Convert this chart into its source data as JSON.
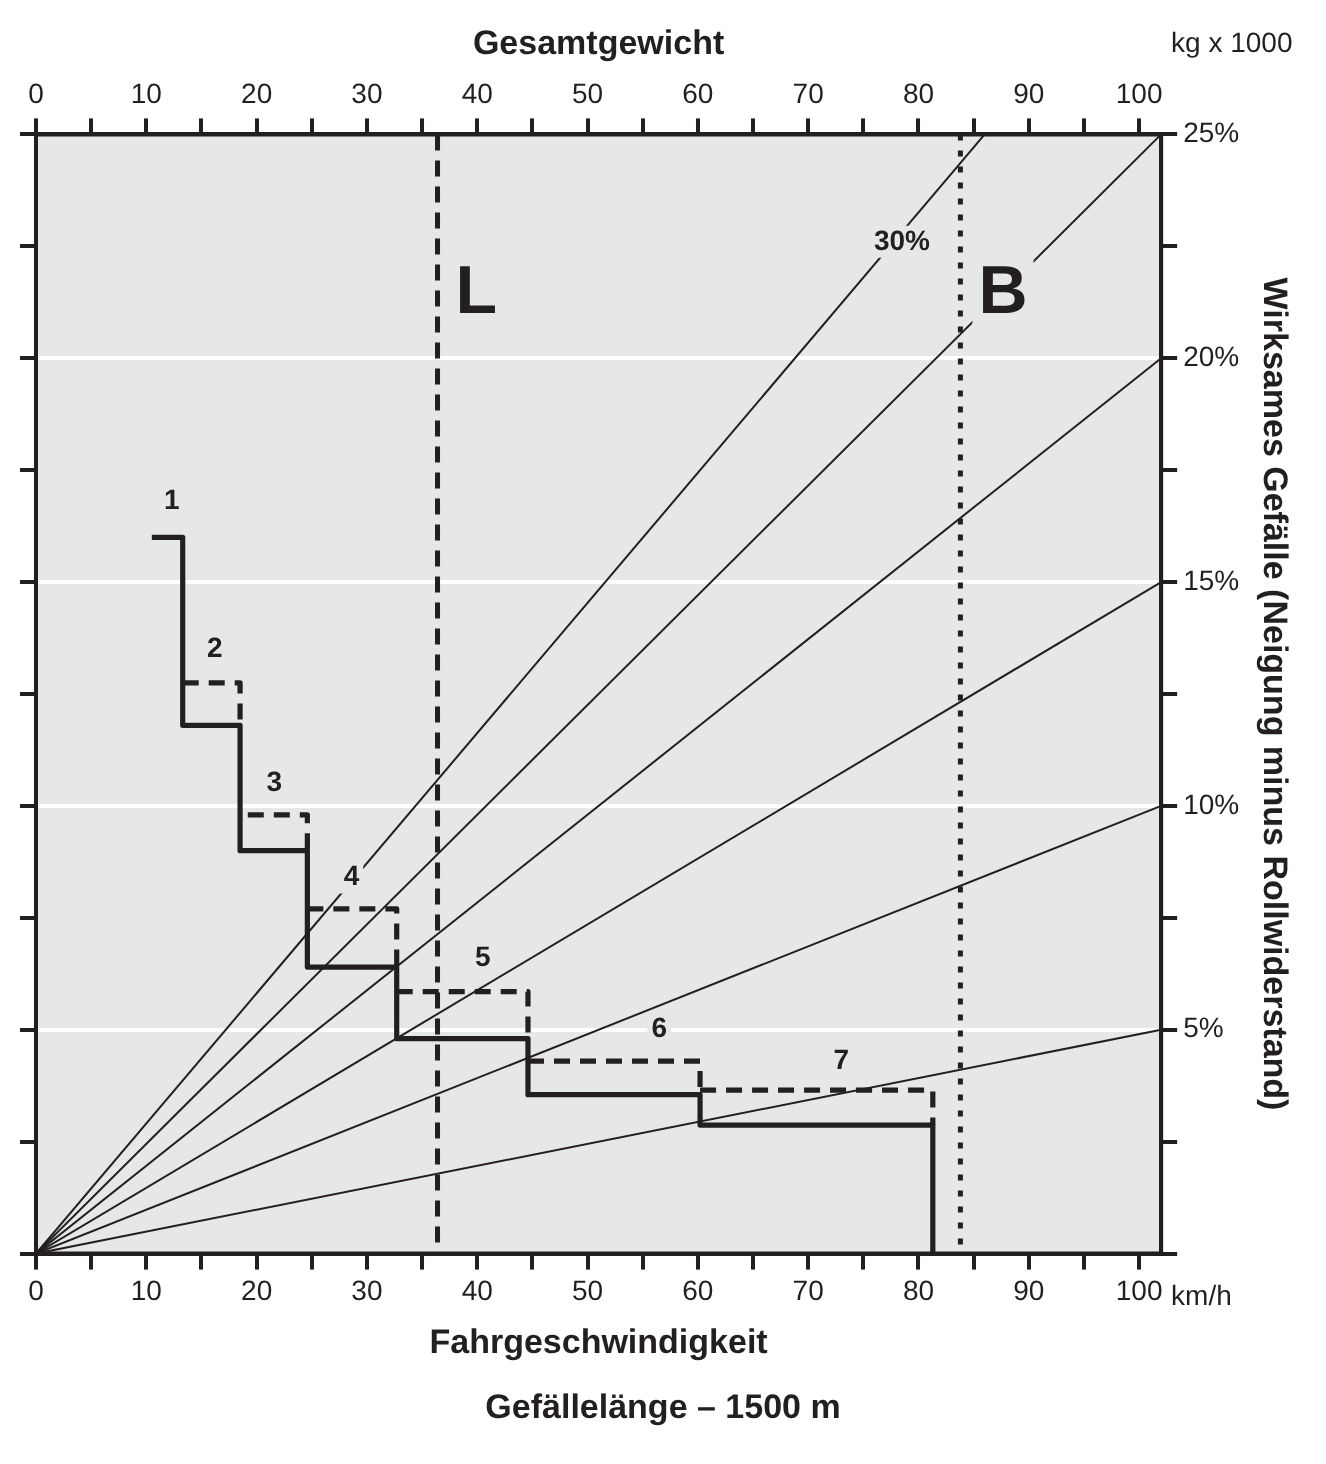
{
  "chart_data": {
    "type": "line",
    "xlabel": "Fahrgeschwindigkeit",
    "x2label": "Gesamtgewicht",
    "ylabel": "Wirksames Gefälle (Neigung minus Rollwiderstand)",
    "xlim": [
      0,
      102
    ],
    "xticks": [
      0,
      {
        "value": 5,
        "label": null
      },
      10,
      {
        "value": 15,
        "label": null
      },
      20,
      {
        "value": 25,
        "label": null
      },
      30,
      {
        "value": 35,
        "label": null
      },
      40,
      {
        "value": 45,
        "label": null
      },
      50,
      {
        "value": 55,
        "label": null
      },
      60,
      {
        "value": 65,
        "label": null
      },
      70,
      {
        "value": 75,
        "label": null
      },
      80,
      {
        "value": 85,
        "label": null
      },
      90,
      {
        "value": 95,
        "label": null
      },
      100
    ],
    "x2lim": [
      0,
      102
    ],
    "x2ticks": [
      0,
      {
        "value": 5,
        "label": null
      },
      10,
      {
        "value": 15,
        "label": null
      },
      20,
      {
        "value": 25,
        "label": null
      },
      30,
      {
        "value": 35,
        "label": null
      },
      40,
      {
        "value": 45,
        "label": null
      },
      50,
      {
        "value": 55,
        "label": null
      },
      60,
      {
        "value": 65,
        "label": null
      },
      70,
      {
        "value": 75,
        "label": null
      },
      80,
      {
        "value": 85,
        "label": null
      },
      90,
      {
        "value": 95,
        "label": null
      },
      100
    ],
    "ylim": [
      0,
      25
    ],
    "yticks": [
      {
        "value": 0,
        "label": null
      },
      {
        "value": 2.5,
        "label": null
      },
      {
        "value": 5,
        "label": "5%"
      },
      {
        "value": 7.5,
        "label": null
      },
      {
        "value": 10,
        "label": "10%"
      },
      {
        "value": 12.5,
        "label": null
      },
      {
        "value": 15,
        "label": "15%"
      },
      {
        "value": 17.5,
        "label": null
      },
      {
        "value": 20,
        "label": "20%"
      },
      {
        "value": 22.5,
        "label": null
      },
      {
        "value": 25,
        "label": "25%"
      }
    ],
    "grid": "y",
    "marker": "none",
    "series": [
      {
        "color": "#231f20",
        "x": [
          0,
          102
        ],
        "values": [
          0,
          5
        ]
      },
      {
        "color": "#231f20",
        "x": [
          0,
          102
        ],
        "values": [
          0,
          10
        ]
      },
      {
        "color": "#231f20",
        "x": [
          0,
          102
        ],
        "values": [
          0,
          15
        ]
      },
      {
        "color": "#231f20",
        "x": [
          0,
          102
        ],
        "values": [
          0,
          20
        ]
      },
      {
        "color": "#231f20",
        "x": [
          0,
          102
        ],
        "values": [
          0,
          25
        ]
      },
      {
        "color": "#231f20",
        "x": [
          0,
          86
        ],
        "values": [
          0,
          25
        ]
      },
      {
        "type": "step",
        "color": "#231f20",
        "line_style": "solid",
        "x": [
          10.5,
          13.3,
          18.5,
          24.6,
          32.7,
          44.6,
          60.2,
          81.3
        ],
        "values": [
          16,
          11.8,
          9,
          6.4,
          4.8,
          3.55,
          2.87,
          0
        ]
      },
      {
        "type": "step",
        "color": "#231f20",
        "line_style": "dashed",
        "x": [
          13.3,
          18.5
        ],
        "values": [
          12.75,
          11.8
        ]
      },
      {
        "type": "step",
        "color": "#231f20",
        "line_style": "dashed",
        "x": [
          19.2,
          24.6
        ],
        "values": [
          9.8,
          9
        ]
      },
      {
        "type": "step",
        "color": "#231f20",
        "line_style": "dashed",
        "x": [
          24.6,
          32.7
        ],
        "values": [
          7.7,
          6.4
        ]
      },
      {
        "type": "step",
        "color": "#231f20",
        "line_style": "dashed",
        "x": [
          32.7,
          44.6
        ],
        "values": [
          5.85,
          4.8
        ]
      },
      {
        "type": "step",
        "color": "#231f20",
        "line_style": "dashed",
        "x": [
          44.6,
          60.2
        ],
        "values": [
          4.3,
          3.55
        ]
      },
      {
        "type": "step",
        "color": "#231f20",
        "line_style": "dashed",
        "x": [
          60.2,
          81.3
        ],
        "values": [
          3.65,
          2.87
        ]
      }
    ],
    "ref_lines": [
      {
        "axis": "x",
        "value": 36.4,
        "label": "L",
        "line_style": "dashed",
        "color": "#231f20"
      },
      {
        "axis": "x",
        "value": 83.8,
        "label": "B",
        "line_style": "dotted",
        "color": "#231f20"
      }
    ],
    "annotations": [
      "kg x 1000",
      "km/h",
      "Gefällelänge – 1500 m",
      {
        "text": "1",
        "x": 12.3,
        "y": 16.8
      },
      {
        "text": "2",
        "x": 16.2,
        "y": 13.5
      },
      {
        "text": "3",
        "x": 21.6,
        "y": 10.5
      },
      {
        "text": "4",
        "x": 28.6,
        "y": 8.4
      },
      {
        "text": "5",
        "x": 40.5,
        "y": 6.6
      },
      {
        "text": "6",
        "x": 56.5,
        "y": 5
      },
      {
        "text": "7",
        "x": 73,
        "y": 4.3
      },
      {
        "text": "30%",
        "x": 78.5,
        "y": 22.6
      }
    ]
  }
}
